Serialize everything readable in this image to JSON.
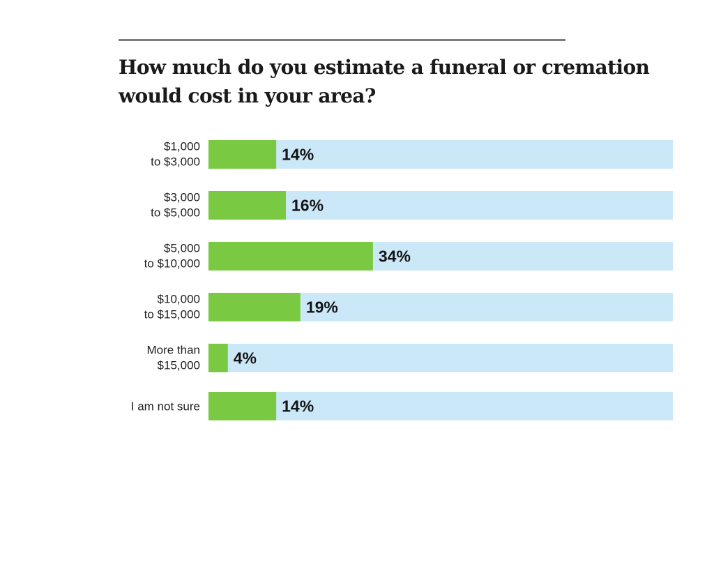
{
  "chart_data": {
    "type": "bar",
    "orientation": "horizontal",
    "title_lines": [
      "How much do you estimate a funeral or cremation",
      "would cost in your area?"
    ],
    "categories": [
      [
        "$1,000",
        "to $3,000"
      ],
      [
        "$3,000",
        "to $5,000"
      ],
      [
        "$5,000",
        "to $10,000"
      ],
      [
        "$10,000",
        "to $15,000"
      ],
      [
        "More than",
        "$15,000"
      ],
      [
        "I am not sure"
      ]
    ],
    "values": [
      14,
      16,
      34,
      19,
      4,
      14
    ],
    "value_labels": [
      "14%",
      "16%",
      "34%",
      "19%",
      "4%",
      "14%"
    ],
    "xlim": [
      0,
      96
    ],
    "grid": false,
    "legend": "none",
    "colors": {
      "bar": "#7ac943",
      "track": "#cbe8f8",
      "rule": "#7d7d7d"
    }
  }
}
